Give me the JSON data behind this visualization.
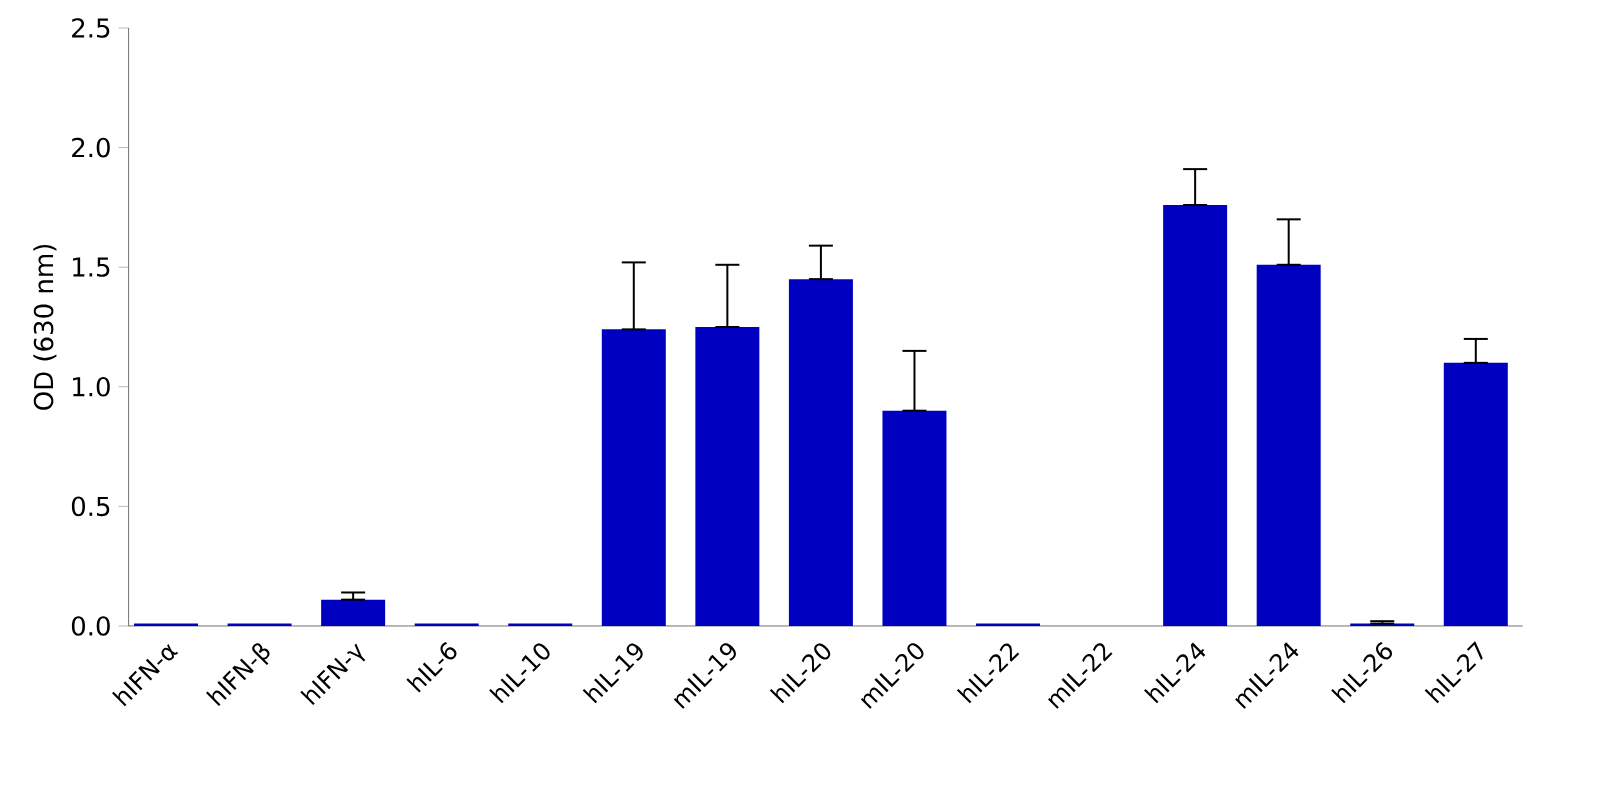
{
  "chart_data": {
    "type": "bar",
    "ylabel": "OD (630 nm)",
    "categories": [
      "hIFN-α",
      "hIFN-β",
      "hIFN-γ",
      "hIL-6",
      "hIL-10",
      "hIL-19",
      "mIL-19",
      "hIL-20",
      "mIL-20",
      "hIL-22",
      "mIL-22",
      "hIL-24",
      "mIL-24",
      "hIL-26",
      "hIL-27"
    ],
    "values": [
      0.01,
      0.01,
      0.11,
      0.01,
      0.01,
      1.24,
      1.25,
      1.45,
      0.9,
      0.01,
      0,
      1.76,
      1.51,
      0.01,
      1.1
    ],
    "errors": [
      null,
      null,
      [
        0.11,
        0.14
      ],
      null,
      null,
      [
        1.24,
        1.52
      ],
      [
        1.25,
        1.51
      ],
      [
        1.45,
        1.59
      ],
      [
        0.9,
        1.15
      ],
      null,
      null,
      [
        1.76,
        1.91
      ],
      [
        1.51,
        1.7
      ],
      [
        0.01,
        0.02
      ],
      [
        1.1,
        1.2
      ]
    ],
    "color": "#0000c0",
    "ylim": [
      0,
      2.5
    ],
    "yticks": [
      {
        "value": 0,
        "label": "0.0"
      },
      0.5,
      {
        "value": 1,
        "label": "1.0"
      },
      1.5,
      {
        "value": 2,
        "label": "2.0"
      },
      2.5
    ]
  }
}
